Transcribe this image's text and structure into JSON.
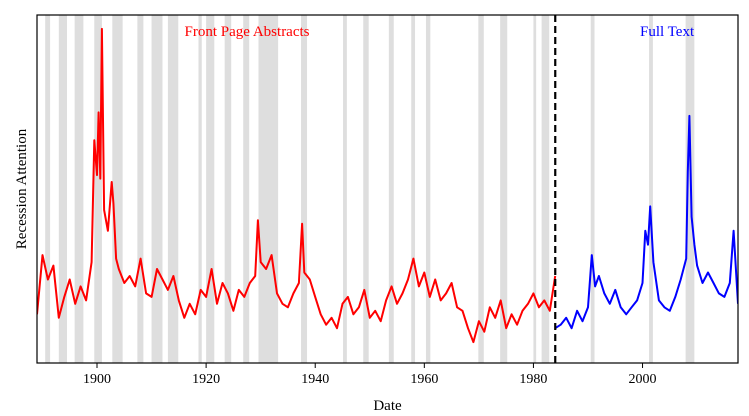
{
  "chart_data": {
    "type": "line",
    "xlabel": "Date",
    "ylabel": "Recession Attention",
    "xlim": [
      1889,
      2017.5
    ],
    "ylim": [
      0,
      1
    ],
    "xticks": [
      1900,
      1920,
      1940,
      1960,
      1980,
      2000
    ],
    "y_tick_labels_shown": false,
    "split_year": 1984,
    "annotations": [
      {
        "text": "Front Page Abstracts",
        "color": "#ff0000",
        "x": 1927.5,
        "y": 0.94
      },
      {
        "text": "Full Text",
        "color": "#0000ff",
        "x": 2004.5,
        "y": 0.94
      }
    ],
    "recession_color": "#dedede",
    "recessions": [
      [
        1890.5,
        1891.4
      ],
      [
        1893.0,
        1894.5
      ],
      [
        1895.9,
        1897.5
      ],
      [
        1899.5,
        1900.9
      ],
      [
        1902.8,
        1904.7
      ],
      [
        1907.4,
        1908.5
      ],
      [
        1910.0,
        1912.0
      ],
      [
        1913.0,
        1914.9
      ],
      [
        1918.6,
        1919.2
      ],
      [
        1920.0,
        1921.5
      ],
      [
        1923.4,
        1924.6
      ],
      [
        1926.8,
        1927.9
      ],
      [
        1929.6,
        1933.2
      ],
      [
        1937.4,
        1938.5
      ],
      [
        1945.1,
        1945.8
      ],
      [
        1948.8,
        1949.8
      ],
      [
        1953.5,
        1954.4
      ],
      [
        1957.6,
        1958.3
      ],
      [
        1960.3,
        1961.1
      ],
      [
        1969.9,
        1970.9
      ],
      [
        1973.9,
        1975.2
      ],
      [
        1980.0,
        1980.5
      ],
      [
        1981.5,
        1982.9
      ],
      [
        1990.5,
        1991.2
      ],
      [
        2001.2,
        2001.9
      ],
      [
        2007.9,
        2009.5
      ]
    ],
    "series": [
      {
        "color": "#ff0000",
        "x": [
          1889,
          1890,
          1891,
          1892,
          1893,
          1894,
          1895,
          1896,
          1897,
          1898,
          1899,
          1899.5,
          1900,
          1900.3,
          1900.6,
          1900.9,
          1901.3,
          1902,
          1902.7,
          1903,
          1903.5,
          1904,
          1905,
          1906,
          1907,
          1908,
          1909,
          1910,
          1911,
          1912,
          1913,
          1914,
          1915,
          1916,
          1917,
          1918,
          1919,
          1920,
          1921,
          1922,
          1923,
          1924,
          1925,
          1926,
          1927,
          1928,
          1929,
          1929.5,
          1930,
          1931,
          1932,
          1933,
          1934,
          1935,
          1936,
          1937,
          1937.6,
          1938,
          1939,
          1940,
          1941,
          1942,
          1943,
          1944,
          1945,
          1946,
          1947,
          1948,
          1949,
          1950,
          1951,
          1952,
          1953,
          1954,
          1955,
          1956,
          1957,
          1958,
          1959,
          1960,
          1961,
          1962,
          1963,
          1964,
          1965,
          1966,
          1967,
          1968,
          1969,
          1970,
          1971,
          1972,
          1973,
          1974,
          1975,
          1976,
          1977,
          1978,
          1979,
          1980,
          1981,
          1982,
          1983,
          1984
        ],
        "y": [
          0.14,
          0.31,
          0.24,
          0.28,
          0.13,
          0.19,
          0.24,
          0.17,
          0.22,
          0.18,
          0.29,
          0.64,
          0.54,
          0.72,
          0.53,
          0.96,
          0.44,
          0.38,
          0.52,
          0.46,
          0.3,
          0.27,
          0.23,
          0.25,
          0.22,
          0.3,
          0.2,
          0.19,
          0.27,
          0.24,
          0.21,
          0.25,
          0.18,
          0.13,
          0.17,
          0.14,
          0.21,
          0.19,
          0.27,
          0.17,
          0.23,
          0.2,
          0.15,
          0.21,
          0.19,
          0.23,
          0.25,
          0.41,
          0.29,
          0.27,
          0.31,
          0.2,
          0.17,
          0.16,
          0.2,
          0.23,
          0.4,
          0.26,
          0.24,
          0.19,
          0.14,
          0.11,
          0.13,
          0.1,
          0.17,
          0.19,
          0.14,
          0.16,
          0.21,
          0.13,
          0.15,
          0.12,
          0.18,
          0.22,
          0.17,
          0.2,
          0.24,
          0.3,
          0.22,
          0.26,
          0.19,
          0.24,
          0.18,
          0.2,
          0.23,
          0.16,
          0.15,
          0.1,
          0.06,
          0.12,
          0.09,
          0.16,
          0.13,
          0.18,
          0.1,
          0.14,
          0.11,
          0.15,
          0.17,
          0.2,
          0.16,
          0.18,
          0.15,
          0.25
        ]
      },
      {
        "color": "#0000ff",
        "x": [
          1984,
          1985,
          1986,
          1987,
          1988,
          1989,
          1990,
          1990.7,
          1991.3,
          1992,
          1993,
          1994,
          1995,
          1996,
          1997,
          1998,
          1999,
          2000,
          2000.5,
          2001,
          2001.4,
          2002,
          2003,
          2004,
          2005,
          2006,
          2007,
          2008,
          2008.3,
          2008.6,
          2009,
          2009.5,
          2010,
          2011,
          2012,
          2013,
          2014,
          2015,
          2016,
          2016.7,
          2017.5
        ],
        "y": [
          0.1,
          0.11,
          0.13,
          0.1,
          0.15,
          0.12,
          0.16,
          0.31,
          0.22,
          0.25,
          0.2,
          0.17,
          0.21,
          0.16,
          0.14,
          0.16,
          0.18,
          0.23,
          0.38,
          0.34,
          0.45,
          0.29,
          0.18,
          0.16,
          0.15,
          0.19,
          0.24,
          0.3,
          0.55,
          0.71,
          0.42,
          0.34,
          0.28,
          0.23,
          0.26,
          0.23,
          0.2,
          0.19,
          0.23,
          0.38,
          0.17
        ]
      }
    ]
  }
}
